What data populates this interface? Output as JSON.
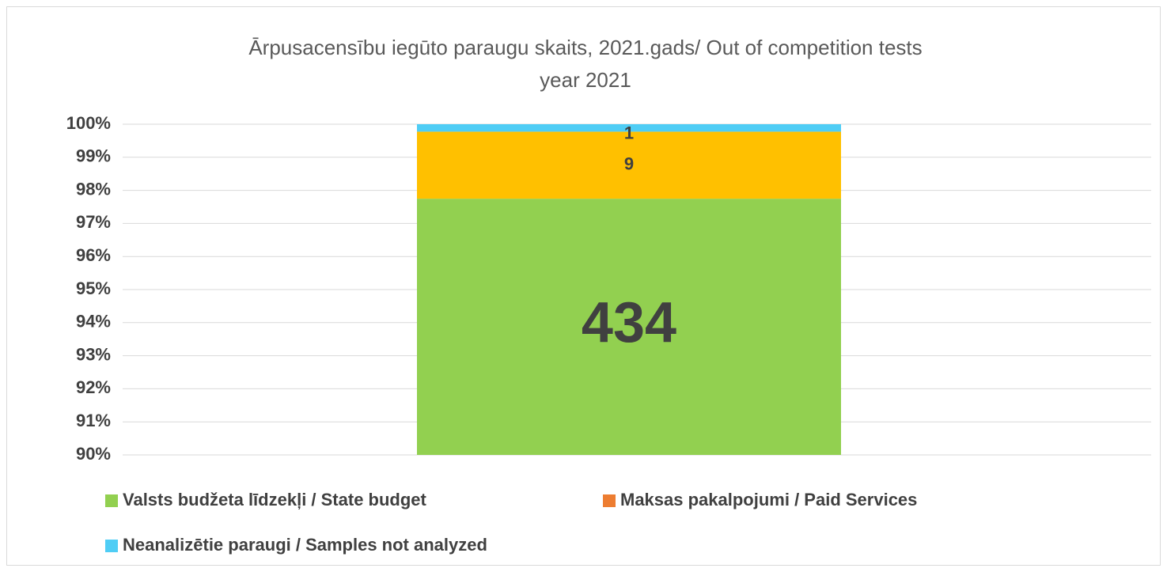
{
  "chart_data": {
    "type": "stacked_percent_bar",
    "title": [
      "Ārpusacensību iegūto paraugu skaits, 2021.gads/ Out of competition tests",
      "year 2021"
    ],
    "series": [
      {
        "name": "Valsts budžeta līdzekļi / State budget",
        "color": "#92d050",
        "values": [
          434
        ]
      },
      {
        "name": "Maksas pakalpojumi / Paid Services",
        "color": "#ffc000",
        "legend_color": "#ed7d31",
        "values": [
          9
        ]
      },
      {
        "name": "Neanalizētie paraugi / Samples not analyzed",
        "color": "#4fcdf5",
        "values": [
          1
        ]
      }
    ],
    "ylim": [
      90,
      100
    ],
    "yticks": [
      {
        "value": 90,
        "label": "90%"
      },
      {
        "value": 91,
        "label": "91%"
      },
      {
        "value": 92,
        "label": "92%"
      },
      {
        "value": 93,
        "label": "93%"
      },
      {
        "value": 94,
        "label": "94%"
      },
      {
        "value": 95,
        "label": "95%"
      },
      {
        "value": 96,
        "label": "96%"
      },
      {
        "value": 97,
        "label": "97%"
      },
      {
        "value": 98,
        "label": "98%"
      },
      {
        "value": 99,
        "label": "99%"
      },
      {
        "value": 100,
        "label": "100%"
      }
    ],
    "grid": true
  }
}
